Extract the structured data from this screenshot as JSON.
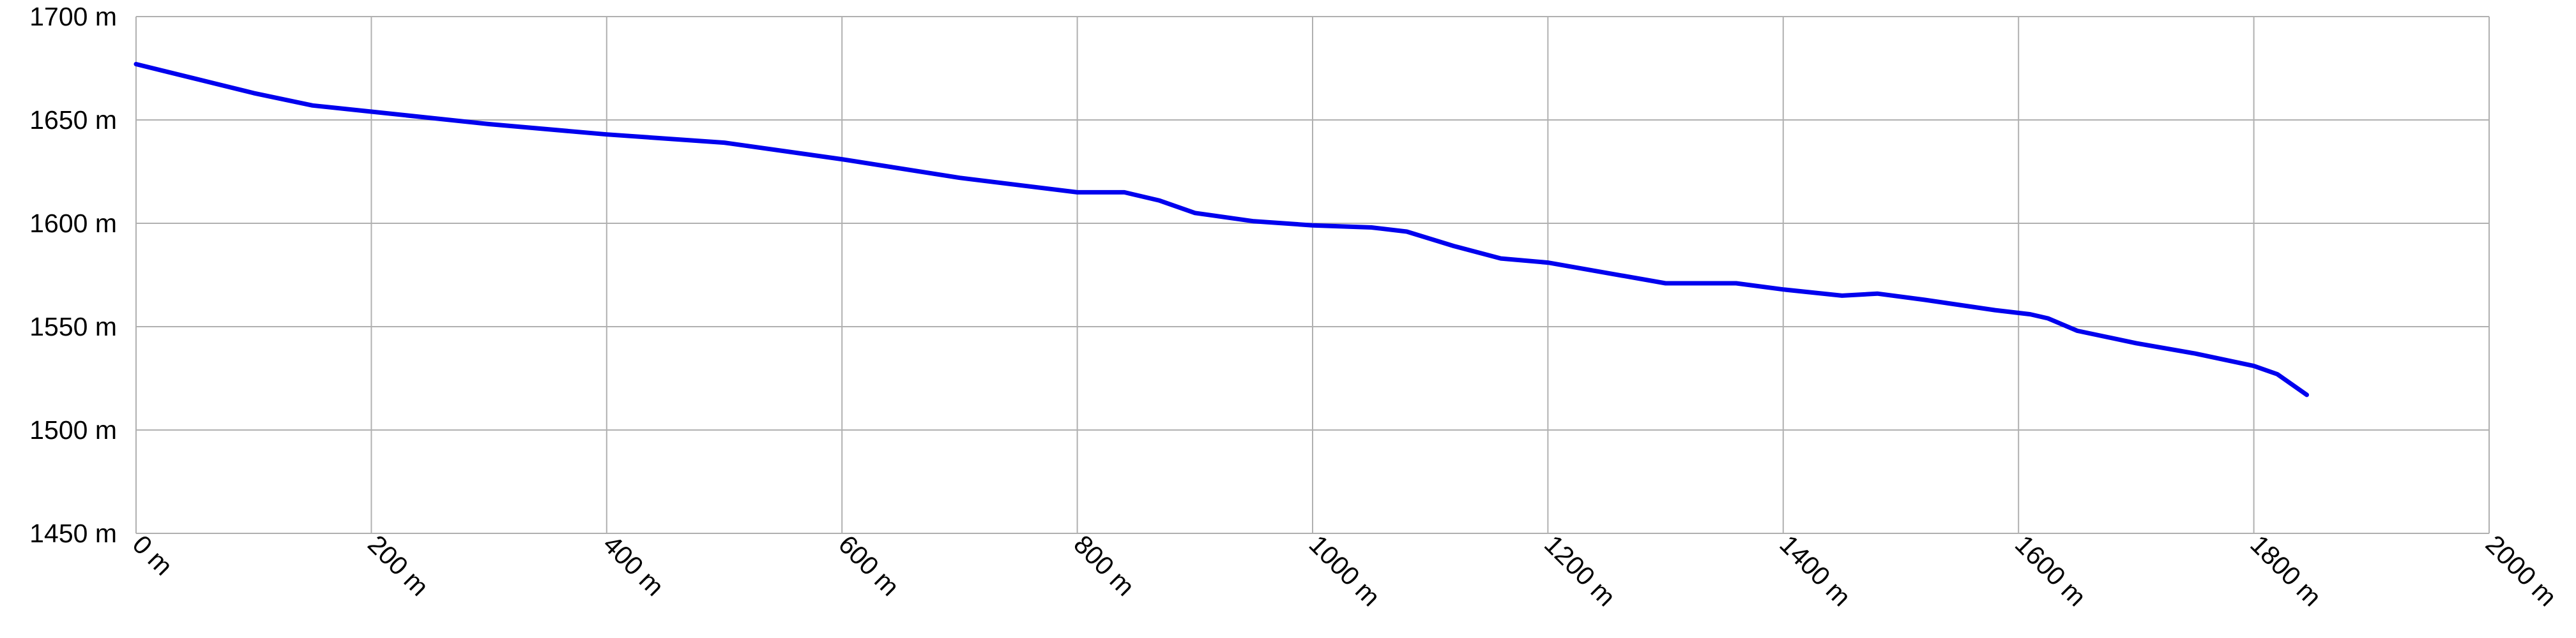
{
  "chart_data": {
    "type": "line",
    "color": "#0000ee",
    "grid": true,
    "x": [
      0,
      50,
      100,
      150,
      200,
      300,
      400,
      500,
      600,
      700,
      800,
      840,
      870,
      900,
      950,
      1000,
      1050,
      1080,
      1120,
      1160,
      1200,
      1250,
      1300,
      1340,
      1360,
      1400,
      1450,
      1480,
      1520,
      1580,
      1610,
      1625,
      1650,
      1700,
      1750,
      1800,
      1820,
      1845
    ],
    "values": [
      1677,
      1670,
      1663,
      1657,
      1654,
      1648,
      1643,
      1639,
      1631,
      1622,
      1615,
      1615,
      1611,
      1605,
      1601,
      1599,
      1598,
      1596,
      1589,
      1583,
      1581,
      1576,
      1571,
      1571,
      1571,
      1568,
      1565,
      1566,
      1563,
      1558,
      1556,
      1554,
      1548,
      1542,
      1537,
      1531,
      1527,
      1517
    ],
    "xlim": [
      0,
      2000
    ],
    "xticks": [
      {
        "value": 0,
        "label": "0 m"
      },
      {
        "value": 200,
        "label": "200 m"
      },
      {
        "value": 400,
        "label": "400 m"
      },
      {
        "value": 600,
        "label": "600 m"
      },
      {
        "value": 800,
        "label": "800 m"
      },
      {
        "value": 1000,
        "label": "1000 m"
      },
      {
        "value": 1200,
        "label": "1200 m"
      },
      {
        "value": 1400,
        "label": "1400 m"
      },
      {
        "value": 1600,
        "label": "1600 m"
      },
      {
        "value": 1800,
        "label": "1800 m"
      },
      {
        "value": 2000,
        "label": "2000 m"
      }
    ],
    "ylim": [
      1450,
      1700
    ],
    "yticks": [
      {
        "value": 1450,
        "label": "1450 m"
      },
      {
        "value": 1500,
        "label": "1500 m"
      },
      {
        "value": 1550,
        "label": "1550 m"
      },
      {
        "value": 1600,
        "label": "1600 m"
      },
      {
        "value": 1650,
        "label": "1650 m"
      },
      {
        "value": 1700,
        "label": "1700 m"
      }
    ]
  }
}
